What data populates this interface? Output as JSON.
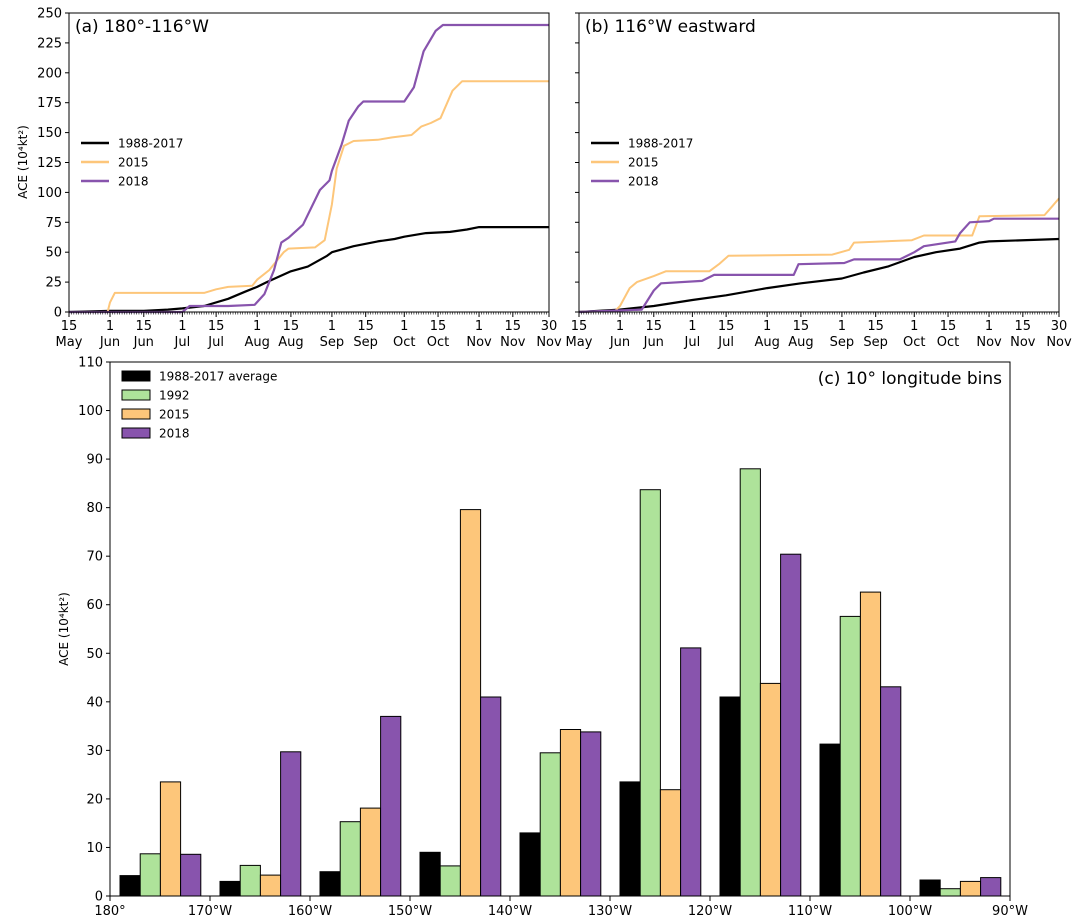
{
  "chart_data": [
    {
      "type": "line",
      "title": "(a) 180°-116°W",
      "ylabel": "ACE (10⁴kt²)",
      "ylim": [
        0,
        250
      ],
      "yticks": [
        0,
        25,
        50,
        75,
        100,
        125,
        150,
        175,
        200,
        225,
        250
      ],
      "xlim": [
        "05-15",
        "11-30"
      ],
      "xtick_labels": [
        [
          "15",
          "May"
        ],
        [
          "1",
          "Jun"
        ],
        [
          "15",
          "Jun"
        ],
        [
          "1",
          "Jul"
        ],
        [
          "15",
          "Jul"
        ],
        [
          "1",
          "Aug"
        ],
        [
          "15",
          "Aug"
        ],
        [
          "1",
          "Sep"
        ],
        [
          "15",
          "Sep"
        ],
        [
          "1",
          "Oct"
        ],
        [
          "15",
          "Oct"
        ],
        [
          "1",
          "Nov"
        ],
        [
          "15",
          "Nov"
        ],
        [
          "30",
          "Nov"
        ]
      ],
      "legend_position": "center-left",
      "series": [
        {
          "name": "1988-2017",
          "color": "#000000",
          "width": 2.2,
          "points": [
            [
              "05-15",
              0
            ],
            [
              "06-01",
              1
            ],
            [
              "06-15",
              1
            ],
            [
              "06-25",
              2
            ],
            [
              "07-01",
              3
            ],
            [
              "07-10",
              5
            ],
            [
              "07-20",
              11
            ],
            [
              "07-27",
              17
            ],
            [
              "08-01",
              21
            ],
            [
              "08-05",
              25
            ],
            [
              "08-15",
              34
            ],
            [
              "08-22",
              38
            ],
            [
              "08-30",
              47
            ],
            [
              "09-01",
              50
            ],
            [
              "09-10",
              55
            ],
            [
              "09-20",
              59
            ],
            [
              "09-27",
              61
            ],
            [
              "10-01",
              63
            ],
            [
              "10-10",
              66
            ],
            [
              "10-20",
              67
            ],
            [
              "10-27",
              69
            ],
            [
              "11-01",
              71
            ],
            [
              "11-30",
              71
            ]
          ]
        },
        {
          "name": "2015",
          "color": "#fdc67a",
          "width": 2,
          "points": [
            [
              "05-15",
              0
            ],
            [
              "05-31",
              0
            ],
            [
              "06-01",
              8
            ],
            [
              "06-03",
              16
            ],
            [
              "07-01",
              16
            ],
            [
              "07-10",
              16
            ],
            [
              "07-15",
              19
            ],
            [
              "07-20",
              21
            ],
            [
              "07-30",
              22
            ],
            [
              "08-01",
              27
            ],
            [
              "08-06",
              35
            ],
            [
              "08-12",
              50
            ],
            [
              "08-14",
              53
            ],
            [
              "08-25",
              54
            ],
            [
              "08-29",
              60
            ],
            [
              "09-01",
              90
            ],
            [
              "09-03",
              120
            ],
            [
              "09-06",
              139
            ],
            [
              "09-10",
              143
            ],
            [
              "09-20",
              144
            ],
            [
              "09-26",
              146
            ],
            [
              "10-04",
              148
            ],
            [
              "10-08",
              155
            ],
            [
              "10-12",
              158
            ],
            [
              "10-16",
              162
            ],
            [
              "10-21",
              185
            ],
            [
              "10-25",
              193
            ],
            [
              "11-30",
              193
            ]
          ]
        },
        {
          "name": "2018",
          "color": "#8854ad",
          "width": 2.2,
          "points": [
            [
              "05-15",
              0
            ],
            [
              "07-01",
              0
            ],
            [
              "07-04",
              5
            ],
            [
              "07-20",
              5
            ],
            [
              "07-31",
              6
            ],
            [
              "08-04",
              15
            ],
            [
              "08-08",
              35
            ],
            [
              "08-11",
              58
            ],
            [
              "08-14",
              62
            ],
            [
              "08-20",
              73
            ],
            [
              "08-27",
              102
            ],
            [
              "08-31",
              110
            ],
            [
              "09-01",
              118
            ],
            [
              "09-05",
              140
            ],
            [
              "09-08",
              160
            ],
            [
              "09-12",
              172
            ],
            [
              "09-14",
              176
            ],
            [
              "10-01",
              176
            ],
            [
              "10-05",
              188
            ],
            [
              "10-09",
              218
            ],
            [
              "10-14",
              235
            ],
            [
              "10-17",
              240
            ],
            [
              "11-30",
              240
            ]
          ]
        }
      ]
    },
    {
      "type": "line",
      "title": "(b) 116°W eastward",
      "ylim": [
        0,
        250
      ],
      "yticks": [
        0,
        25,
        50,
        75,
        100,
        125,
        150,
        175,
        200,
        225,
        250
      ],
      "xlim": [
        "05-15",
        "11-30"
      ],
      "xtick_labels": [
        [
          "15",
          "May"
        ],
        [
          "1",
          "Jun"
        ],
        [
          "15",
          "Jun"
        ],
        [
          "1",
          "Jul"
        ],
        [
          "15",
          "Jul"
        ],
        [
          "1",
          "Aug"
        ],
        [
          "15",
          "Aug"
        ],
        [
          "1",
          "Sep"
        ],
        [
          "15",
          "Sep"
        ],
        [
          "1",
          "Oct"
        ],
        [
          "15",
          "Oct"
        ],
        [
          "1",
          "Nov"
        ],
        [
          "15",
          "Nov"
        ],
        [
          "30",
          "Nov"
        ]
      ],
      "legend_position": "center-left",
      "series": [
        {
          "name": "1988-2017",
          "color": "#000000",
          "width": 2.2,
          "points": [
            [
              "05-15",
              0
            ],
            [
              "06-01",
              2
            ],
            [
              "06-15",
              5
            ],
            [
              "07-01",
              10
            ],
            [
              "07-15",
              14
            ],
            [
              "08-01",
              20
            ],
            [
              "08-15",
              24
            ],
            [
              "09-01",
              28
            ],
            [
              "09-10",
              33
            ],
            [
              "09-20",
              38
            ],
            [
              "10-01",
              46
            ],
            [
              "10-10",
              50
            ],
            [
              "10-20",
              53
            ],
            [
              "10-28",
              58
            ],
            [
              "11-01",
              59
            ],
            [
              "11-30",
              61
            ]
          ]
        },
        {
          "name": "2015",
          "color": "#fdc67a",
          "width": 2,
          "points": [
            [
              "05-15",
              0
            ],
            [
              "05-30",
              1
            ],
            [
              "06-01",
              5
            ],
            [
              "06-05",
              20
            ],
            [
              "06-08",
              25
            ],
            [
              "06-15",
              30
            ],
            [
              "06-20",
              34
            ],
            [
              "07-08",
              34
            ],
            [
              "07-12",
              40
            ],
            [
              "07-16",
              47
            ],
            [
              "08-28",
              48
            ],
            [
              "09-04",
              52
            ],
            [
              "09-06",
              58
            ],
            [
              "09-30",
              60
            ],
            [
              "10-05",
              64
            ],
            [
              "10-25",
              64
            ],
            [
              "10-28",
              80
            ],
            [
              "11-24",
              81
            ],
            [
              "11-27",
              88
            ],
            [
              "11-30",
              95
            ]
          ]
        },
        {
          "name": "2018",
          "color": "#8854ad",
          "width": 2.2,
          "points": [
            [
              "05-15",
              0
            ],
            [
              "06-10",
              2
            ],
            [
              "06-15",
              18
            ],
            [
              "06-18",
              24
            ],
            [
              "07-05",
              26
            ],
            [
              "07-10",
              31
            ],
            [
              "08-12",
              31
            ],
            [
              "08-14",
              40
            ],
            [
              "09-02",
              41
            ],
            [
              "09-06",
              44
            ],
            [
              "09-25",
              44
            ],
            [
              "10-01",
              50
            ],
            [
              "10-05",
              55
            ],
            [
              "10-18",
              59
            ],
            [
              "10-20",
              66
            ],
            [
              "10-24",
              75
            ],
            [
              "11-01",
              76
            ],
            [
              "11-03",
              78
            ],
            [
              "11-30",
              78
            ]
          ]
        }
      ]
    },
    {
      "type": "bar",
      "title": "(c) 10° longitude bins",
      "ylabel": "ACE (10⁴kt²)",
      "ylim": [
        0,
        110
      ],
      "yticks": [
        0,
        10,
        20,
        30,
        40,
        50,
        60,
        70,
        80,
        90,
        100,
        110
      ],
      "xtick_labels": [
        "180°",
        "170°W",
        "160°W",
        "150°W",
        "140°W",
        "130°W",
        "120°W",
        "110°W",
        "100°W",
        "90°W"
      ],
      "bins": [
        "180°-170°W",
        "170°-160°W",
        "160°-150°W",
        "150°-140°W",
        "140°-130°W",
        "130°-120°W",
        "120°-110°W",
        "110°-100°W",
        "100°-90°W"
      ],
      "legend_position": "top-left",
      "series": [
        {
          "name": "1988-2017 average",
          "color": "#000000",
          "values": [
            4.2,
            3.0,
            5.0,
            9.0,
            13.0,
            23.5,
            41.0,
            31.3,
            3.3
          ]
        },
        {
          "name": "1992",
          "color": "#aee39a",
          "values": [
            8.7,
            6.3,
            15.3,
            6.2,
            29.5,
            83.7,
            88.0,
            57.6,
            1.5
          ]
        },
        {
          "name": "2015",
          "color": "#fdc67a",
          "values": [
            23.5,
            4.3,
            18.1,
            79.6,
            34.3,
            21.9,
            43.8,
            62.6,
            3.0
          ]
        },
        {
          "name": "2018",
          "color": "#8854ad",
          "values": [
            8.6,
            29.7,
            37.0,
            41.0,
            33.8,
            51.1,
            70.4,
            43.1,
            3.8
          ]
        }
      ]
    }
  ]
}
